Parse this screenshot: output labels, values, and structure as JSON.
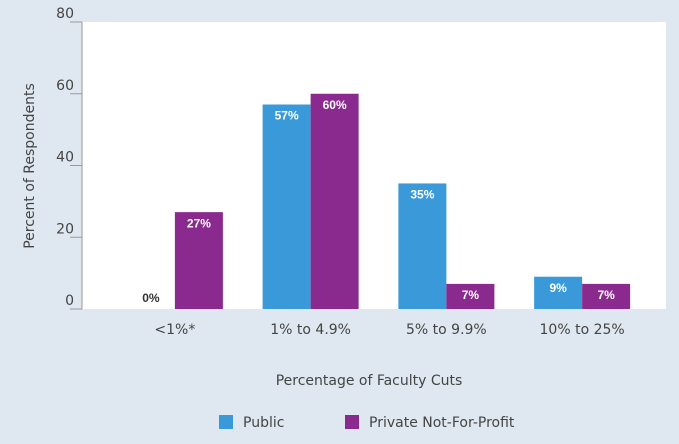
{
  "chart_data": {
    "type": "bar",
    "x_label": "Percentage of Faculty Cuts",
    "y_label": "Percent of Respondents",
    "categories": [
      "<1%*",
      "1% to 4.9%",
      "5% to 9.9%",
      "10% to 25%"
    ],
    "series": [
      {
        "name": "Public",
        "color": "#3a9ad9",
        "values": [
          0,
          57,
          35,
          9
        ],
        "value_labels": [
          "0%",
          "57%",
          "35%",
          "9%"
        ]
      },
      {
        "name": "Private Not-For-Profit",
        "color": "#8b2a8e",
        "values": [
          27,
          60,
          7,
          7
        ],
        "value_labels": [
          "27%",
          "60%",
          "7%",
          "7%"
        ]
      }
    ],
    "ylim": [
      0,
      80
    ],
    "yticks": [
      0,
      20,
      40,
      60,
      80
    ],
    "grid": false
  }
}
